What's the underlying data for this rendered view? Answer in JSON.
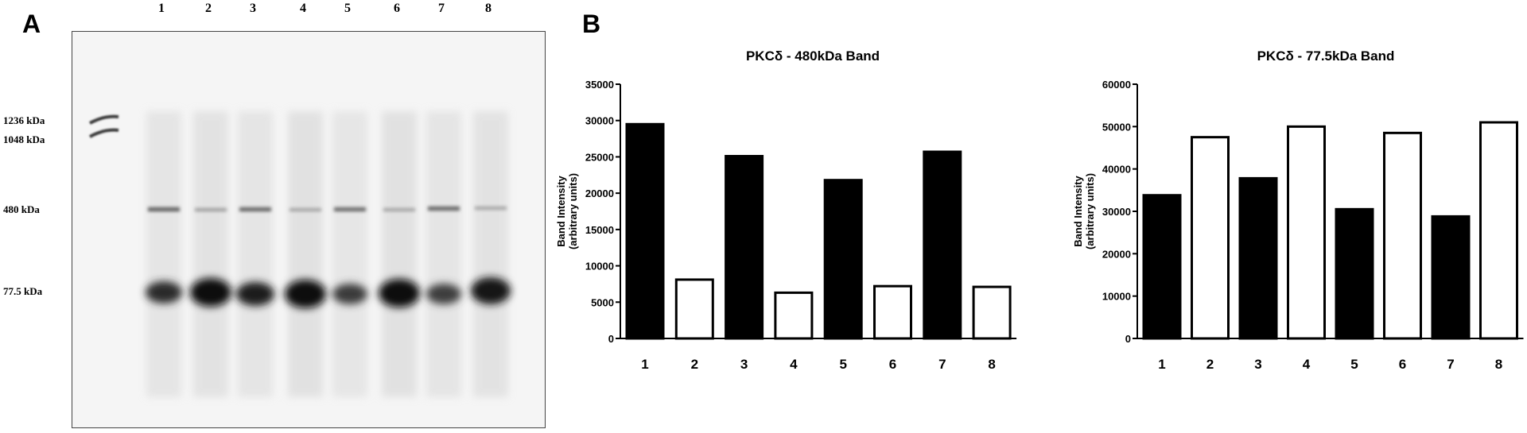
{
  "panel_a": {
    "letter": "A",
    "lanes": [
      "1",
      "2",
      "3",
      "4",
      "5",
      "6",
      "7",
      "8"
    ],
    "markers": [
      "1236 kDa",
      "1048 kDa",
      "480 kDa",
      "77.5 kDa"
    ]
  },
  "panel_b": {
    "letter": "B"
  },
  "colors": {
    "filled": "#000000",
    "open": "#ffffff",
    "axis": "#000000"
  },
  "chart_data": [
    {
      "type": "bar",
      "title": "PKCδ - 480kDa Band",
      "ylabel_line1": "Band Intensity",
      "ylabel_line2": "(arbitrary units)",
      "categories": [
        "1",
        "2",
        "3",
        "4",
        "5",
        "6",
        "7",
        "8"
      ],
      "values": [
        29500,
        8100,
        25100,
        6300,
        21800,
        7200,
        25700,
        7100
      ],
      "fill": [
        "filled",
        "open",
        "filled",
        "open",
        "filled",
        "open",
        "filled",
        "open"
      ],
      "ylim": [
        0,
        35000
      ],
      "yticks": [
        "0",
        "5000",
        "10000",
        "15000",
        "20000",
        "25000",
        "30000",
        "35000"
      ],
      "grid": false
    },
    {
      "type": "bar",
      "title": "PKCδ - 77.5kDa Band",
      "ylabel_line1": "Band Intensity",
      "ylabel_line2": "(arbitrary units)",
      "categories": [
        "1",
        "2",
        "3",
        "4",
        "5",
        "6",
        "7",
        "8"
      ],
      "values": [
        33800,
        47500,
        37800,
        50000,
        30500,
        48500,
        28800,
        51000
      ],
      "fill": [
        "filled",
        "open",
        "filled",
        "open",
        "filled",
        "open",
        "filled",
        "open"
      ],
      "ylim": [
        0,
        60000
      ],
      "yticks": [
        "0",
        "10000",
        "20000",
        "30000",
        "40000",
        "50000",
        "60000"
      ],
      "grid": false
    }
  ]
}
